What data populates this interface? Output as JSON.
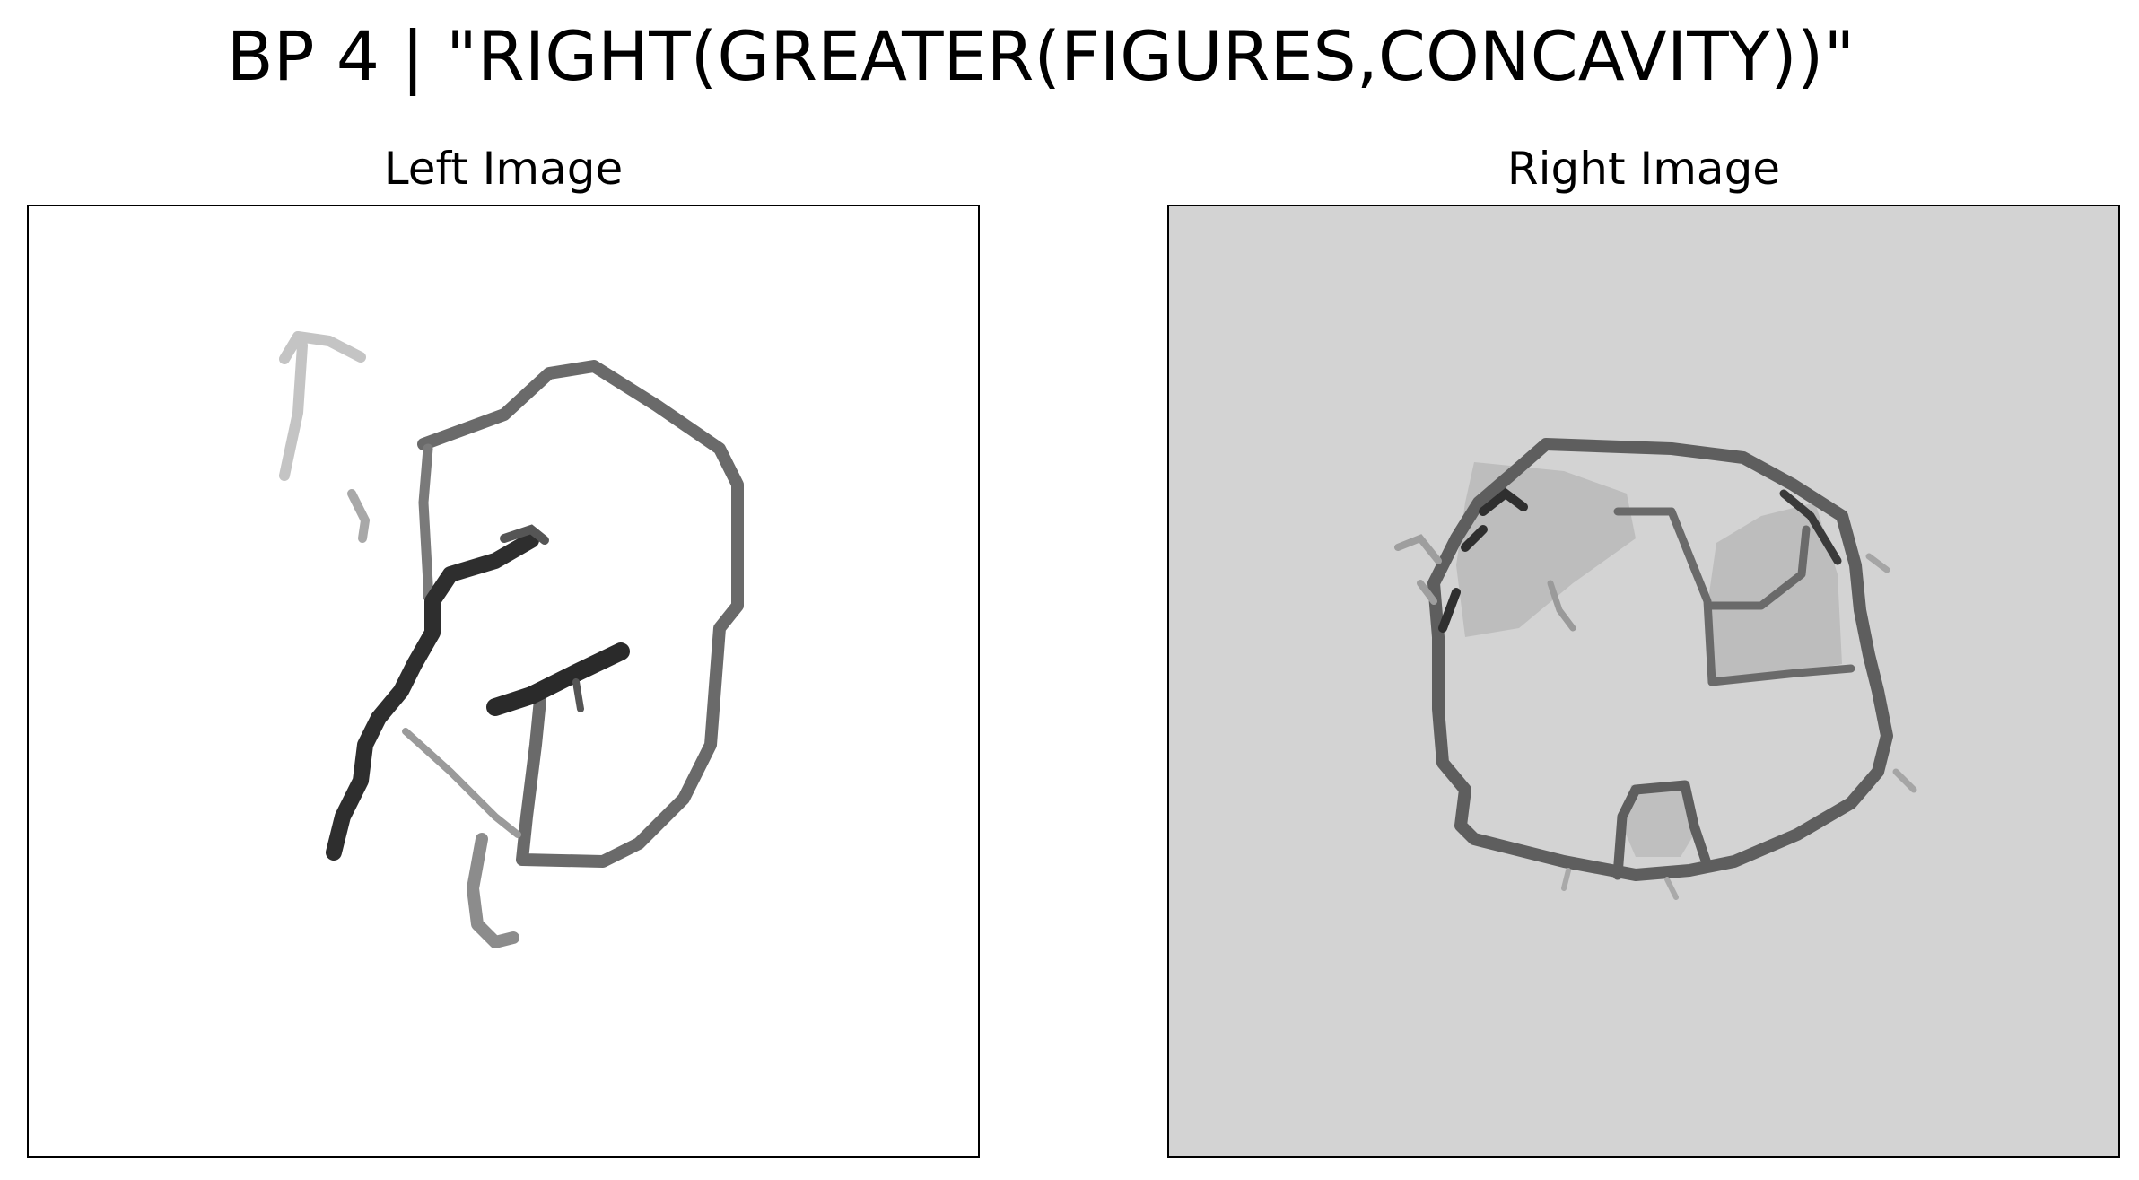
{
  "title": "BP 4 | \"RIGHT(GREATER(FIGURES,CONCAVITY))\"",
  "panels": {
    "left": {
      "title": "Left Image",
      "background": "#ffffff"
    },
    "right": {
      "title": "Right Image",
      "background": "#d3d3d3"
    }
  },
  "colors": {
    "stroke_dark": "#333333",
    "stroke_mid": "#6e6e6e",
    "stroke_light": "#b5b5b5",
    "fill_gray": "#bdbdbd"
  }
}
